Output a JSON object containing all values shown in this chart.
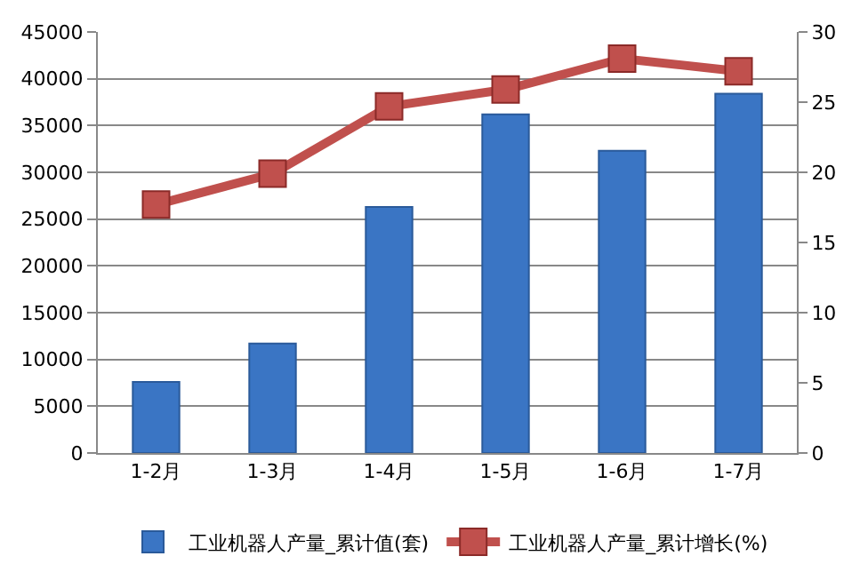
{
  "chart_data": {
    "type": "bar",
    "categories": [
      "1-2月",
      "1-3月",
      "1-4月",
      "1-5月",
      "1-6月",
      "1-7月"
    ],
    "series": [
      {
        "name": "工业机器人产量_累计值(套)",
        "color": "#3a75c4",
        "values": [
          7600,
          11700,
          26300,
          36200,
          32300,
          38400
        ]
      },
      {
        "name": "工业机器人产量_累计增长(%)",
        "type": "line",
        "axis": "y2",
        "color": "#c0504d",
        "marker": "square",
        "values": [
          17.7,
          19.9,
          24.7,
          25.9,
          28.1,
          27.2
        ]
      }
    ],
    "ylim": [
      0,
      45000
    ],
    "yticks": [
      0,
      5000,
      10000,
      15000,
      20000,
      25000,
      30000,
      35000,
      40000,
      45000
    ],
    "y2lim": [
      0,
      30
    ],
    "y2ticks": [
      0,
      5,
      10,
      15,
      20,
      25,
      30
    ],
    "grid": "y",
    "legend": "bottom"
  }
}
